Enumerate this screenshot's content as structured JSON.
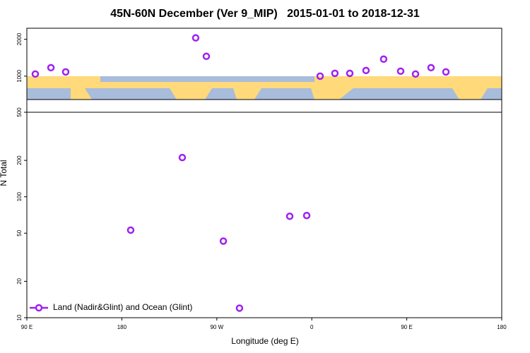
{
  "chart_data": [
    {
      "type": "scatter",
      "title": "45N-60N December (Ver 9_MIP)   2015-01-01 to 2018-12-31",
      "x": [
        98.0,
        112.8,
        126.8,
        250.0,
        260.1,
        367.9,
        381.9,
        396.0,
        411.4,
        428.1,
        444.2,
        458.3,
        473.0,
        487.1
      ],
      "values": [
        1058,
        1231,
        1115,
        2038,
        1538,
        1000,
        1077,
        1077,
        1154,
        1462,
        1135,
        1058,
        1231,
        1115
      ],
      "color": "#a020f0",
      "xlim": [
        90,
        540
      ],
      "ylim": [
        40,
        2300
      ],
      "yticks": [
        1000,
        2000
      ]
    },
    {
      "type": "scatter",
      "x": [
        188.4,
        237.3,
        276.2,
        291.5,
        339.1,
        355.2
      ],
      "series": [
        {
          "name": "Land (Nadir&Glint) and Ocean (Glint)",
          "color": "#a020f0",
          "values": [
            53,
            211,
            43,
            12,
            69,
            70
          ]
        }
      ],
      "xlim": [
        90,
        540
      ],
      "ylim": [
        10,
        500
      ],
      "log_y": true,
      "yticks": [
        10,
        20,
        50,
        100,
        200,
        500
      ],
      "xticks": [
        {
          "value": 90,
          "label": "90 E"
        },
        180,
        {
          "value": 270,
          "label": "90 W"
        },
        {
          "value": 360,
          "label": "0"
        },
        {
          "value": 450,
          "label": "90 E"
        },
        {
          "value": 540,
          "label": "180"
        }
      ],
      "xlabel": "Longitude (deg E)",
      "ylabel": "N Total",
      "legend": "lower left"
    }
  ]
}
